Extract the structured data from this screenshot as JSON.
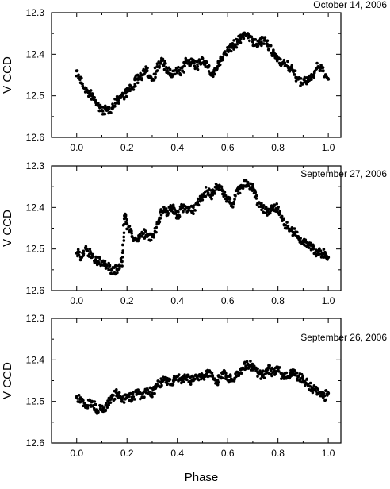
{
  "x_axis_label": "Phase",
  "chart_data": [
    {
      "type": "scatter",
      "title": "October 14, 2006",
      "xlabel": "",
      "ylabel": "V CCD",
      "xlim": [
        -0.1,
        1.05
      ],
      "ylim": [
        12.3,
        12.6
      ],
      "y_reversed": true,
      "x_ticks": [
        "0.0",
        "0.2",
        "0.4",
        "0.6",
        "0.8",
        "1.0"
      ],
      "y_ticks": [
        "12.3",
        "12.4",
        "12.5",
        "12.6"
      ],
      "grid": false,
      "marker_color": "#000000",
      "series": [
        {
          "x": [
            0.0,
            0.02,
            0.04,
            0.06,
            0.08,
            0.1,
            0.12,
            0.14,
            0.16,
            0.18,
            0.2,
            0.22,
            0.24,
            0.26,
            0.28,
            0.3,
            0.32,
            0.34,
            0.36,
            0.38,
            0.4,
            0.42,
            0.44,
            0.46,
            0.48,
            0.5,
            0.52,
            0.54,
            0.56,
            0.58,
            0.6,
            0.62,
            0.64,
            0.66,
            0.68,
            0.7,
            0.72,
            0.74,
            0.76,
            0.78,
            0.8,
            0.82,
            0.84,
            0.86,
            0.88,
            0.9,
            0.92,
            0.94,
            0.96,
            0.98,
            1.0
          ],
          "y": [
            12.44,
            12.47,
            12.49,
            12.5,
            12.52,
            12.535,
            12.535,
            12.53,
            12.51,
            12.5,
            12.49,
            12.48,
            12.46,
            12.45,
            12.44,
            12.46,
            12.43,
            12.415,
            12.44,
            12.45,
            12.44,
            12.44,
            12.415,
            12.42,
            12.43,
            12.41,
            12.43,
            12.45,
            12.43,
            12.41,
            12.39,
            12.38,
            12.37,
            12.355,
            12.35,
            12.37,
            12.38,
            12.36,
            12.38,
            12.4,
            12.41,
            12.42,
            12.43,
            12.44,
            12.46,
            12.47,
            12.46,
            12.45,
            12.43,
            12.44,
            12.46
          ]
        }
      ]
    },
    {
      "type": "scatter",
      "title": "September 27, 2006",
      "xlabel": "",
      "ylabel": "V CCD",
      "xlim": [
        -0.1,
        1.05
      ],
      "ylim": [
        12.3,
        12.6
      ],
      "y_reversed": true,
      "x_ticks": [
        "0.0",
        "0.2",
        "0.4",
        "0.6",
        "0.8",
        "1.0"
      ],
      "y_ticks": [
        "12.3",
        "12.4",
        "12.5",
        "12.6"
      ],
      "grid": false,
      "marker_color": "#000000",
      "series": [
        {
          "x": [
            0.0,
            0.02,
            0.04,
            0.06,
            0.08,
            0.1,
            0.12,
            0.14,
            0.16,
            0.18,
            0.19,
            0.2,
            0.22,
            0.24,
            0.26,
            0.28,
            0.3,
            0.32,
            0.34,
            0.36,
            0.38,
            0.4,
            0.42,
            0.44,
            0.46,
            0.48,
            0.5,
            0.52,
            0.54,
            0.56,
            0.58,
            0.6,
            0.62,
            0.64,
            0.66,
            0.68,
            0.7,
            0.72,
            0.74,
            0.76,
            0.78,
            0.8,
            0.82,
            0.84,
            0.86,
            0.88,
            0.9,
            0.92,
            0.94,
            0.96,
            0.98,
            1.0
          ],
          "y": [
            12.51,
            12.52,
            12.5,
            12.52,
            12.53,
            12.53,
            12.54,
            12.55,
            12.55,
            12.53,
            12.42,
            12.44,
            12.47,
            12.48,
            12.46,
            12.47,
            12.47,
            12.44,
            12.41,
            12.41,
            12.4,
            12.42,
            12.4,
            12.4,
            12.41,
            12.39,
            12.37,
            12.36,
            12.37,
            12.35,
            12.36,
            12.38,
            12.39,
            12.36,
            12.35,
            12.34,
            12.35,
            12.39,
            12.4,
            12.41,
            12.4,
            12.4,
            12.43,
            12.45,
            12.46,
            12.47,
            12.48,
            12.49,
            12.5,
            12.51,
            12.51,
            12.52
          ]
        }
      ]
    },
    {
      "type": "scatter",
      "title": "September 26, 2006",
      "xlabel": "Phase",
      "ylabel": "V CCD",
      "xlim": [
        -0.1,
        1.05
      ],
      "ylim": [
        12.3,
        12.6
      ],
      "y_reversed": true,
      "x_ticks": [
        "0.0",
        "0.2",
        "0.4",
        "0.6",
        "0.8",
        "1.0"
      ],
      "y_ticks": [
        "12.3",
        "12.4",
        "12.5",
        "12.6"
      ],
      "grid": false,
      "marker_color": "#000000",
      "series": [
        {
          "x": [
            0.0,
            0.02,
            0.04,
            0.06,
            0.08,
            0.1,
            0.12,
            0.14,
            0.16,
            0.18,
            0.2,
            0.22,
            0.24,
            0.26,
            0.28,
            0.3,
            0.32,
            0.34,
            0.36,
            0.38,
            0.4,
            0.42,
            0.44,
            0.46,
            0.48,
            0.5,
            0.52,
            0.54,
            0.56,
            0.58,
            0.6,
            0.62,
            0.64,
            0.66,
            0.68,
            0.7,
            0.72,
            0.74,
            0.76,
            0.78,
            0.8,
            0.82,
            0.84,
            0.86,
            0.88,
            0.9,
            0.92,
            0.94,
            0.96,
            0.98,
            1.0
          ],
          "y": [
            12.49,
            12.5,
            12.51,
            12.5,
            12.52,
            12.52,
            12.51,
            12.49,
            12.48,
            12.5,
            12.49,
            12.49,
            12.48,
            12.49,
            12.47,
            12.48,
            12.46,
            12.45,
            12.45,
            12.46,
            12.44,
            12.45,
            12.44,
            12.45,
            12.44,
            12.44,
            12.43,
            12.44,
            12.45,
            12.43,
            12.44,
            12.45,
            12.43,
            12.42,
            12.41,
            12.42,
            12.43,
            12.44,
            12.42,
            12.43,
            12.42,
            12.44,
            12.44,
            12.43,
            12.44,
            12.45,
            12.46,
            12.47,
            12.48,
            12.49,
            12.48
          ]
        }
      ]
    }
  ]
}
